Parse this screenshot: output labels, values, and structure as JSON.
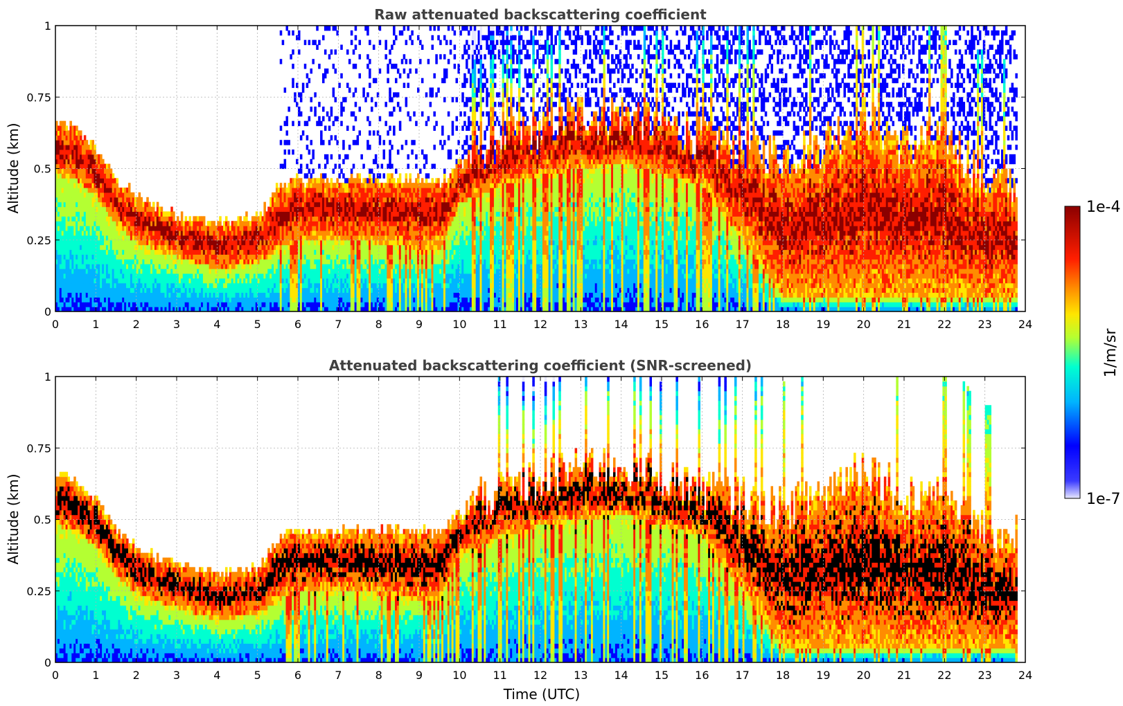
{
  "chart_data": [
    {
      "type": "heatmap",
      "title": "Raw attenuated backscattering coefficient",
      "xlabel": "",
      "ylabel": "Altitude (km)",
      "xlim": [
        0,
        24
      ],
      "ylim": [
        0,
        1
      ],
      "x_ticks": [
        "0",
        "1",
        "2",
        "3",
        "4",
        "5",
        "6",
        "7",
        "8",
        "9",
        "10",
        "11",
        "12",
        "13",
        "14",
        "15",
        "16",
        "17",
        "18",
        "19",
        "20",
        "21",
        "22",
        "23",
        "24"
      ],
      "y_ticks": [
        "0",
        "0.25",
        "0.5",
        "0.75",
        "1"
      ],
      "grid": true,
      "screening": "raw",
      "layer_top_km": {
        "x": [
          0,
          0.5,
          1,
          1.5,
          2,
          3,
          4,
          5,
          5.5,
          6,
          7,
          8,
          9,
          9.5,
          10,
          11,
          12,
          13,
          14,
          15,
          16,
          17,
          18,
          19,
          20,
          21,
          22,
          23,
          23.8
        ],
        "y": [
          0.66,
          0.64,
          0.57,
          0.46,
          0.4,
          0.34,
          0.31,
          0.33,
          0.44,
          0.46,
          0.46,
          0.47,
          0.46,
          0.45,
          0.53,
          0.62,
          0.64,
          0.7,
          0.7,
          0.66,
          0.62,
          0.58,
          0.55,
          0.6,
          0.7,
          0.58,
          0.62,
          0.47,
          0.45
        ]
      },
      "layer_bottom_km": {
        "x": [
          0,
          0.5,
          1,
          1.5,
          2,
          3,
          4,
          5,
          5.5,
          6,
          7,
          8,
          9,
          9.5,
          10,
          11,
          12,
          13,
          14,
          15,
          16,
          17,
          18,
          19,
          20,
          21,
          22,
          23,
          23.8
        ],
        "y": [
          0.48,
          0.46,
          0.4,
          0.3,
          0.24,
          0.19,
          0.15,
          0.17,
          0.22,
          0.25,
          0.25,
          0.24,
          0.22,
          0.22,
          0.38,
          0.44,
          0.48,
          0.5,
          0.52,
          0.48,
          0.44,
          0.25,
          0.05,
          0.05,
          0.05,
          0.05,
          0.05,
          0.05,
          0.05
        ]
      }
    },
    {
      "type": "heatmap",
      "title": "Attenuated backscattering coefficient (SNR-screened)",
      "xlabel": "Time (UTC)",
      "ylabel": "Altitude (km)",
      "xlim": [
        0,
        24
      ],
      "ylim": [
        0,
        1
      ],
      "x_ticks": [
        "0",
        "1",
        "2",
        "3",
        "4",
        "5",
        "6",
        "7",
        "8",
        "9",
        "10",
        "11",
        "12",
        "13",
        "14",
        "15",
        "16",
        "17",
        "18",
        "19",
        "20",
        "21",
        "22",
        "23",
        "24"
      ],
      "y_ticks": [
        "0",
        "0.25",
        "0.5",
        "0.75",
        "1"
      ],
      "grid": true,
      "screening": "snr",
      "saturated_color": "#000000"
    }
  ],
  "colorbar": {
    "label": "1/m/sr",
    "max_label": "1e-4",
    "min_label": "1e-7",
    "scale": "log",
    "range": [
      1e-07,
      0.0001
    ],
    "colormap": "jet",
    "colors": [
      "#e8e8ff",
      "#0000ff",
      "#00b4ff",
      "#00ffd0",
      "#b4ff32",
      "#ffe600",
      "#ff8c00",
      "#ff1e00",
      "#8b0000"
    ]
  }
}
